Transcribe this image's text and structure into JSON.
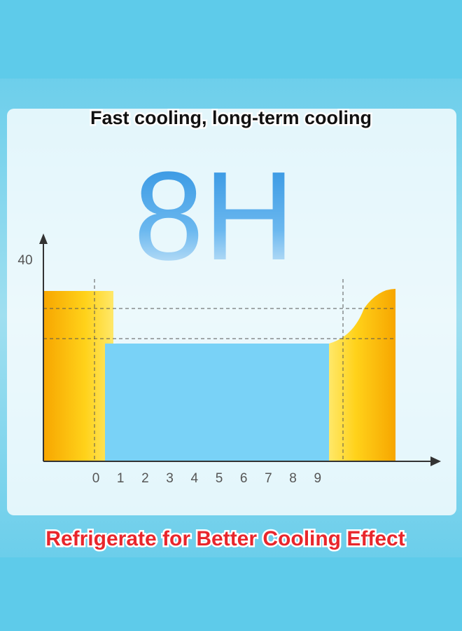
{
  "header": {
    "title": "Fast cooling, long-term cooling",
    "headline": "8H"
  },
  "graph": {
    "y_label": "40",
    "x_labels": [
      "0",
      "1",
      "2",
      "3",
      "4",
      "5",
      "6",
      "7",
      "8",
      "9"
    ]
  },
  "footer": {
    "caption": "Refrigerate for Better Cooling Effect"
  }
}
